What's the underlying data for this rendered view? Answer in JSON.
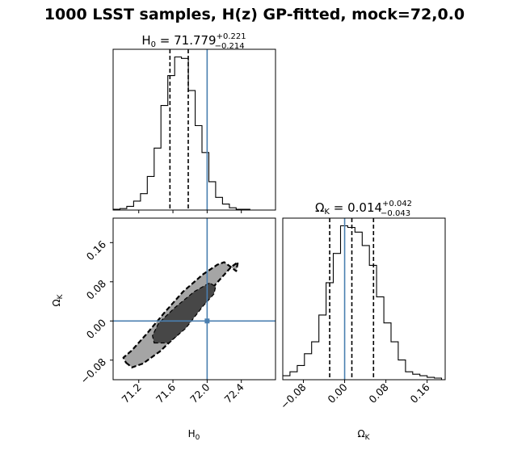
{
  "figure": {
    "title": "1000 LSST samples, H(z) GP-fitted, mock=72,0.0"
  },
  "chart_data": [
    {
      "type": "histogram",
      "panel": "H0 marginal",
      "title": {
        "prefix": "H",
        "sub": "0",
        "value": " = 71.779",
        "sup": "+0.221",
        "inf": "−0.214"
      },
      "param": "H0",
      "bin_edges": [
        70.9,
        70.98,
        71.06,
        71.14,
        71.22,
        71.3,
        71.38,
        71.46,
        71.54,
        71.62,
        71.7,
        71.78,
        71.86,
        71.94,
        72.02,
        72.1,
        72.18,
        72.26,
        72.34,
        72.42,
        72.5
      ],
      "counts": [
        1,
        2,
        5,
        12,
        22,
        45,
        83,
        140,
        180,
        205,
        203,
        160,
        113,
        77,
        38,
        17,
        8,
        3,
        1,
        1
      ],
      "xlim": [
        70.9,
        72.8
      ],
      "quantiles": [
        71.565,
        71.779,
        72.0
      ],
      "truth": 72.0
    },
    {
      "type": "contour",
      "panel": "H0 vs Omega_K joint",
      "xlabel": {
        "main": "H",
        "sub": "0"
      },
      "ylabel": {
        "main": "Ω",
        "sub": "K"
      },
      "xlim": [
        70.9,
        72.8
      ],
      "ylim": [
        -0.12,
        0.21
      ],
      "xticks": [
        71.2,
        71.6,
        72.0,
        72.4
      ],
      "xtick_labels": [
        "71.2",
        "71.6",
        "72.0",
        "72.4"
      ],
      "yticks": [
        -0.08,
        0.0,
        0.08,
        0.16
      ],
      "ytick_labels": [
        "−0.08",
        "0.00",
        "0.08",
        "0.16"
      ],
      "outer_contour": [
        [
          71.05,
          -0.085
        ],
        [
          71.12,
          -0.095
        ],
        [
          71.25,
          -0.087
        ],
        [
          71.45,
          -0.062
        ],
        [
          71.7,
          -0.02
        ],
        [
          71.92,
          0.03
        ],
        [
          72.1,
          0.075
        ],
        [
          72.28,
          0.11
        ],
        [
          72.36,
          0.12
        ],
        [
          72.34,
          0.102
        ],
        [
          72.28,
          0.11
        ],
        [
          72.2,
          0.12
        ],
        [
          72.12,
          0.115
        ],
        [
          71.95,
          0.095
        ],
        [
          71.72,
          0.06
        ],
        [
          71.5,
          0.017
        ],
        [
          71.3,
          -0.025
        ],
        [
          71.12,
          -0.06
        ],
        [
          71.02,
          -0.075
        ]
      ],
      "inner_contour": [
        [
          71.38,
          -0.045
        ],
        [
          71.55,
          -0.045
        ],
        [
          71.75,
          -0.015
        ],
        [
          71.95,
          0.03
        ],
        [
          72.08,
          0.055
        ],
        [
          72.1,
          0.07
        ],
        [
          72.03,
          0.078
        ],
        [
          71.85,
          0.06
        ],
        [
          71.62,
          0.027
        ],
        [
          71.43,
          -0.005
        ],
        [
          71.36,
          -0.03
        ]
      ],
      "truth": [
        72.0,
        0.0
      ]
    },
    {
      "type": "histogram",
      "panel": "Omega_K marginal",
      "title": {
        "prefix": "Ω",
        "sub": "K",
        "value": " = 0.014",
        "sup": "+0.042",
        "inf": "−0.043"
      },
      "param": "Omega_K",
      "bin_edges": [
        -0.12,
        -0.106,
        -0.092,
        -0.078,
        -0.064,
        -0.05,
        -0.036,
        -0.022,
        -0.008,
        0.006,
        0.02,
        0.034,
        0.048,
        0.062,
        0.076,
        0.09,
        0.104,
        0.118,
        0.132,
        0.146,
        0.16,
        0.174,
        0.188
      ],
      "counts": [
        5,
        10,
        18,
        33,
        48,
        82,
        123,
        160,
        195,
        193,
        187,
        170,
        145,
        105,
        72,
        48,
        25,
        10,
        7,
        5,
        3,
        2
      ],
      "xlim": [
        -0.12,
        0.195
      ],
      "xticks": [
        -0.08,
        0.0,
        0.08,
        0.16
      ],
      "xtick_labels": [
        "−0.08",
        "0.00",
        "0.08",
        "0.16"
      ],
      "quantiles": [
        -0.029,
        0.014,
        0.056
      ],
      "truth": 0.0
    }
  ],
  "colors": {
    "truth": "#4a7fb0",
    "contour_outer_fill": "#a5a5a5",
    "contour_inner_fill": "#474747",
    "line": "#000000"
  }
}
